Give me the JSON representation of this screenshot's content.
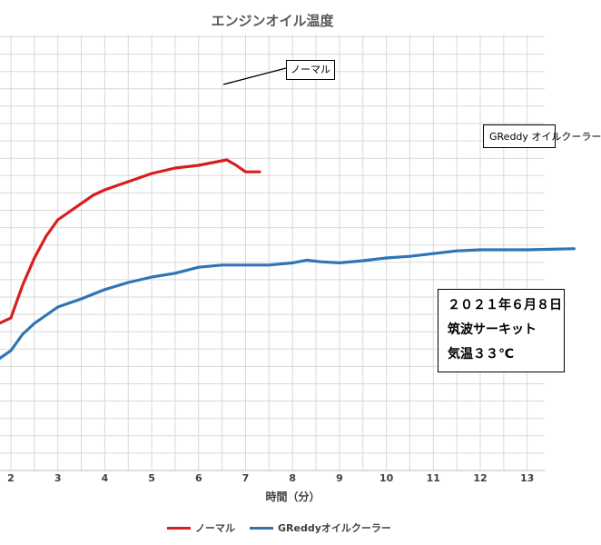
{
  "chart_data": {
    "type": "line",
    "title": "エンジンオイル温度",
    "xlabel": "時間（分）",
    "ylabel": "",
    "grid": true,
    "legend_position": "bottom",
    "x_ticks": [
      2,
      3,
      4,
      5,
      6,
      7,
      8,
      9,
      10,
      11,
      12,
      13
    ],
    "y_ticks": [],
    "series": [
      {
        "name": "ノーマル",
        "color": "#d81e1e",
        "x": [
          1.75,
          2.0,
          2.25,
          2.5,
          2.75,
          3.0,
          3.25,
          3.5,
          3.75,
          4.0,
          4.5,
          5.0,
          5.5,
          6.0,
          6.3,
          6.6,
          6.8,
          7.0,
          7.3
        ],
        "y": [
          0.27,
          0.28,
          0.34,
          0.39,
          0.43,
          0.46,
          0.475,
          0.49,
          0.505,
          0.515,
          0.53,
          0.545,
          0.555,
          0.56,
          0.565,
          0.57,
          0.56,
          0.548,
          0.548
        ]
      },
      {
        "name": "GReddyオイルクーラー",
        "color": "#2e75b6",
        "x": [
          1.75,
          2.0,
          2.25,
          2.5,
          2.75,
          3.0,
          3.5,
          4.0,
          4.5,
          5.0,
          5.5,
          6.0,
          6.5,
          7.0,
          7.5,
          8.0,
          8.3,
          8.6,
          9.0,
          9.5,
          10.0,
          10.5,
          11.0,
          11.5,
          12.0,
          12.5,
          13.0,
          13.5,
          14.0
        ],
        "y": [
          0.205,
          0.22,
          0.25,
          0.27,
          0.285,
          0.3,
          0.315,
          0.332,
          0.345,
          0.355,
          0.362,
          0.373,
          0.377,
          0.377,
          0.377,
          0.381,
          0.386,
          0.383,
          0.381,
          0.385,
          0.39,
          0.393,
          0.398,
          0.403,
          0.405,
          0.405,
          0.405,
          0.406,
          0.407
        ]
      }
    ],
    "annotations": [
      "ノーマル",
      "GReddy オイルクーラー"
    ],
    "info": [
      "２０２１年６月８日",
      "筑波サーキット",
      "気温３３℃"
    ]
  }
}
